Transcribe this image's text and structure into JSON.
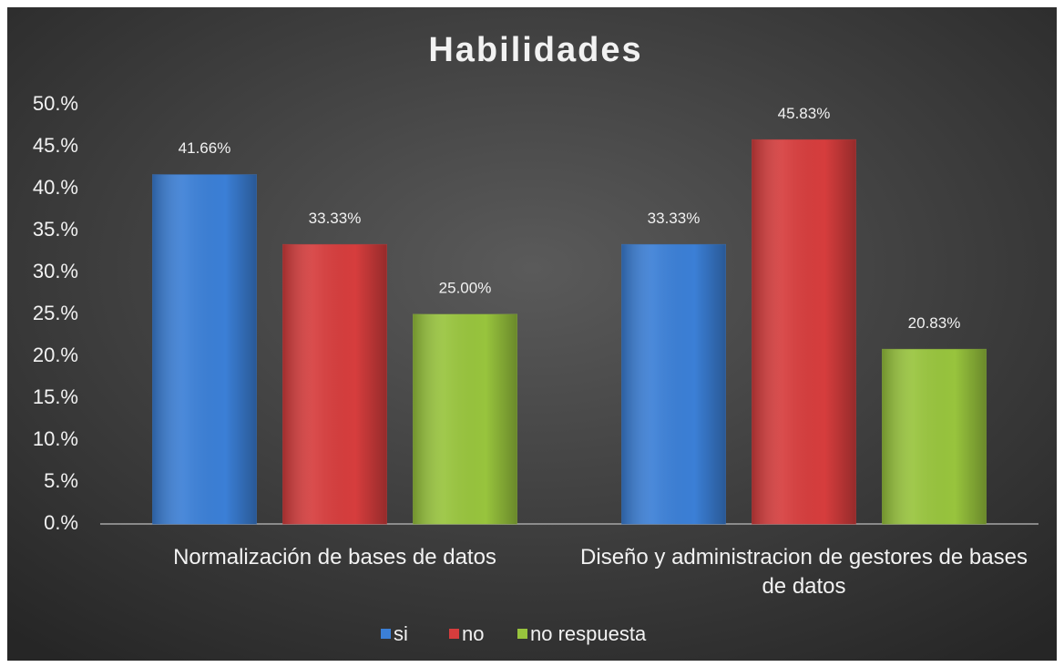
{
  "chart_data": {
    "type": "bar",
    "title": "Habilidades",
    "categories": [
      "Normalización de bases de datos",
      "Diseño y administracion de gestores de bases de datos"
    ],
    "series": [
      {
        "name": "si",
        "color": "#3b7fd6",
        "values": [
          41.66,
          33.33
        ],
        "value_labels": [
          "41.66%",
          "33.33%"
        ]
      },
      {
        "name": "no",
        "color": "#d63d3d",
        "values": [
          33.33,
          45.83
        ],
        "value_labels": [
          "33.33%",
          "45.83%"
        ]
      },
      {
        "name": "no respuesta",
        "color": "#98c43d",
        "values": [
          25.0,
          20.83
        ],
        "value_labels": [
          "25.00%",
          "20.83%"
        ]
      }
    ],
    "ylim": [
      0,
      50
    ],
    "yticks": [
      {
        "value": 0,
        "label": "0.%"
      },
      {
        "value": 5,
        "label": "5.%"
      },
      {
        "value": 10,
        "label": "10.%"
      },
      {
        "value": 15,
        "label": "15.%"
      },
      {
        "value": 20,
        "label": "20.%"
      },
      {
        "value": 25,
        "label": "25.%"
      },
      {
        "value": 30,
        "label": "30.%"
      },
      {
        "value": 35,
        "label": "35.%"
      },
      {
        "value": 40,
        "label": "40.%"
      },
      {
        "value": 45,
        "label": "45.%"
      },
      {
        "value": 50,
        "label": "50.%"
      }
    ],
    "legend": "bottom"
  }
}
